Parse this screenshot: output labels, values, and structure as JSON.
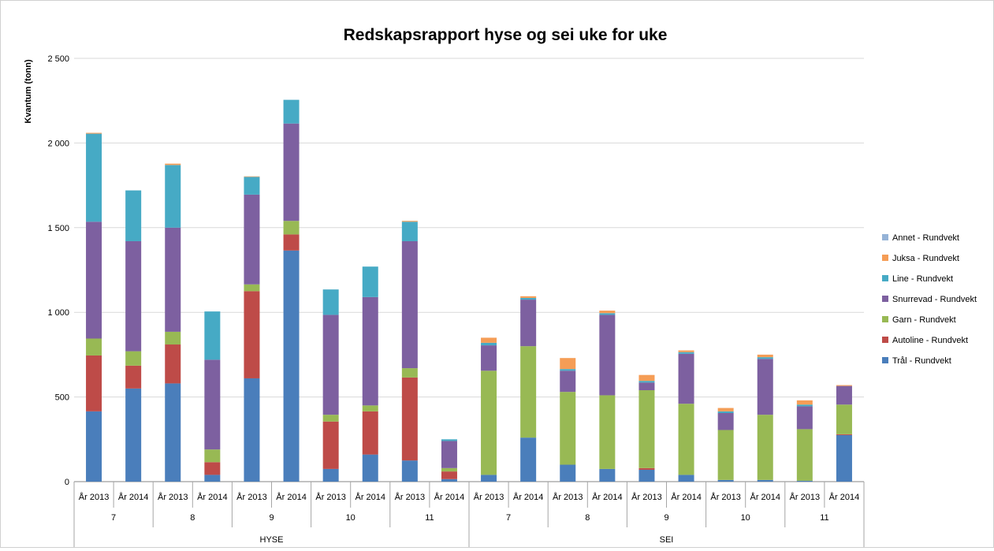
{
  "chart_data": {
    "type": "bar",
    "stacked": true,
    "title": "Redskapsrapport hyse og sei uke for uke",
    "ylabel": "Kvantum (tonn)",
    "xlabel": "",
    "ylim": [
      0,
      2500
    ],
    "yticks": [
      0,
      500,
      1000,
      1500,
      2000,
      2500
    ],
    "ytick_labels": [
      "0",
      "500",
      "1 000",
      "1 500",
      "2 000",
      "2 500"
    ],
    "grid": true,
    "legend_position": "right",
    "categories": [
      "År 2013",
      "År 2014",
      "År 2013",
      "År 2014",
      "År 2013",
      "År 2014",
      "År 2013",
      "År 2014",
      "År 2013",
      "År 2014",
      "År 2013",
      "År 2014",
      "År 2013",
      "År 2014",
      "År 2013",
      "År 2014",
      "År 2013",
      "År 2014",
      "År 2013",
      "År 2014"
    ],
    "week_groups": [
      "7",
      "8",
      "9",
      "10",
      "11",
      "7",
      "8",
      "9",
      "10",
      "11"
    ],
    "species_groups": [
      "HYSE",
      "SEI"
    ],
    "series": [
      {
        "name": "Trål - Rundvekt",
        "color": "#4a7ebb",
        "values": [
          415,
          550,
          580,
          40,
          610,
          1365,
          75,
          160,
          125,
          15,
          40,
          260,
          100,
          75,
          70,
          40,
          10,
          10,
          5,
          275
        ]
      },
      {
        "name": "Autoline - Rundvekt",
        "color": "#be4b48",
        "values": [
          330,
          135,
          230,
          75,
          515,
          95,
          280,
          255,
          490,
          45,
          0,
          0,
          0,
          0,
          10,
          0,
          0,
          0,
          0,
          5
        ]
      },
      {
        "name": "Garn - Rundvekt",
        "color": "#98b954",
        "values": [
          100,
          85,
          75,
          75,
          40,
          80,
          40,
          35,
          55,
          20,
          615,
          540,
          430,
          435,
          460,
          420,
          295,
          385,
          305,
          175
        ]
      },
      {
        "name": "Snurrevad - Rundvekt",
        "color": "#7d60a0",
        "values": [
          690,
          650,
          615,
          530,
          530,
          575,
          590,
          640,
          750,
          160,
          150,
          275,
          125,
          475,
          45,
          295,
          100,
          330,
          135,
          110
        ]
      },
      {
        "name": "Line - Rundvekt",
        "color": "#46aac5",
        "values": [
          520,
          300,
          370,
          285,
          105,
          140,
          150,
          180,
          115,
          10,
          15,
          10,
          10,
          10,
          10,
          10,
          10,
          10,
          10,
          0
        ]
      },
      {
        "name": "Juksa - Rundvekt",
        "color": "#f59d56",
        "values": [
          5,
          0,
          8,
          0,
          3,
          0,
          0,
          0,
          5,
          0,
          30,
          10,
          65,
          15,
          35,
          10,
          20,
          15,
          25,
          5
        ]
      },
      {
        "name": "Annet - Rundvekt",
        "color": "#95b3d7",
        "values": [
          0,
          0,
          0,
          0,
          0,
          0,
          0,
          0,
          0,
          0,
          0,
          0,
          0,
          0,
          0,
          0,
          0,
          0,
          0,
          0
        ]
      }
    ],
    "legend_order": [
      "Annet - Rundvekt",
      "Juksa - Rundvekt",
      "Line - Rundvekt",
      "Snurrevad - Rundvekt",
      "Garn - Rundvekt",
      "Autoline - Rundvekt",
      "Trål - Rundvekt"
    ]
  }
}
